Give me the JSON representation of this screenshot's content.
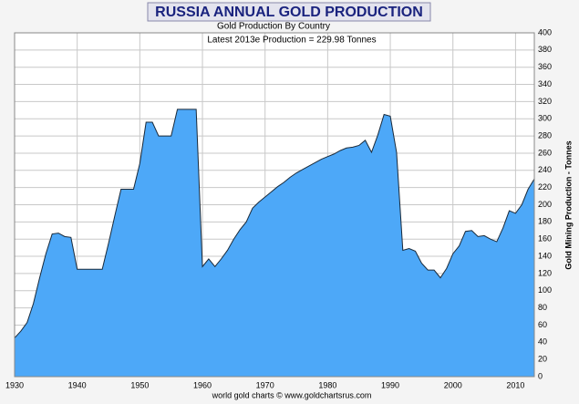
{
  "chart_data": {
    "type": "area",
    "title": "RUSSIA ANNUAL GOLD PRODUCTION",
    "subtitle": "Gold Production By Country",
    "annotation": "Latest 2013e  Production = 229.98 Tonnes",
    "y_label": "Gold Mining Production - Tonnes",
    "footer": "world gold charts © www.goldchartsrus.com",
    "x": [
      1930,
      1931,
      1932,
      1933,
      1934,
      1935,
      1936,
      1937,
      1938,
      1939,
      1940,
      1941,
      1942,
      1943,
      1944,
      1945,
      1946,
      1947,
      1948,
      1949,
      1950,
      1951,
      1952,
      1953,
      1954,
      1955,
      1956,
      1957,
      1958,
      1959,
      1960,
      1961,
      1962,
      1963,
      1964,
      1965,
      1966,
      1967,
      1968,
      1969,
      1970,
      1971,
      1972,
      1973,
      1974,
      1975,
      1976,
      1977,
      1978,
      1979,
      1980,
      1981,
      1982,
      1983,
      1984,
      1985,
      1986,
      1987,
      1988,
      1989,
      1990,
      1991,
      1992,
      1993,
      1994,
      1995,
      1996,
      1997,
      1998,
      1999,
      2000,
      2001,
      2002,
      2003,
      2004,
      2005,
      2006,
      2007,
      2008,
      2009,
      2010,
      2011,
      2012,
      2013
    ],
    "values": [
      45,
      53,
      63,
      85,
      115,
      143,
      166,
      167,
      163,
      162,
      125,
      125,
      125,
      125,
      125,
      155,
      187,
      218,
      218,
      218,
      248,
      296,
      296,
      280,
      280,
      280,
      311,
      311,
      311,
      311,
      128,
      137,
      128,
      137,
      147,
      160,
      171,
      180,
      196,
      203,
      209,
      215,
      221,
      226,
      232,
      237,
      241,
      245,
      249,
      253,
      256,
      259,
      263,
      266,
      267,
      269,
      275,
      261,
      281,
      305,
      303,
      261,
      147,
      149,
      146,
      132,
      124,
      124,
      115,
      126,
      143,
      152,
      169,
      170,
      163,
      164,
      160,
      157,
      173,
      193,
      190,
      200,
      218,
      229.98
    ],
    "color": "#4da8f8",
    "xlim": [
      1930,
      2013
    ],
    "xticks": [
      1930,
      1940,
      1950,
      1960,
      1970,
      1980,
      1990,
      2000,
      2010
    ],
    "ylim": [
      0,
      400
    ],
    "yticks": [
      0,
      20,
      40,
      60,
      80,
      100,
      120,
      140,
      160,
      180,
      200,
      220,
      240,
      260,
      280,
      300,
      320,
      340,
      360,
      380,
      400
    ],
    "grid": true
  }
}
